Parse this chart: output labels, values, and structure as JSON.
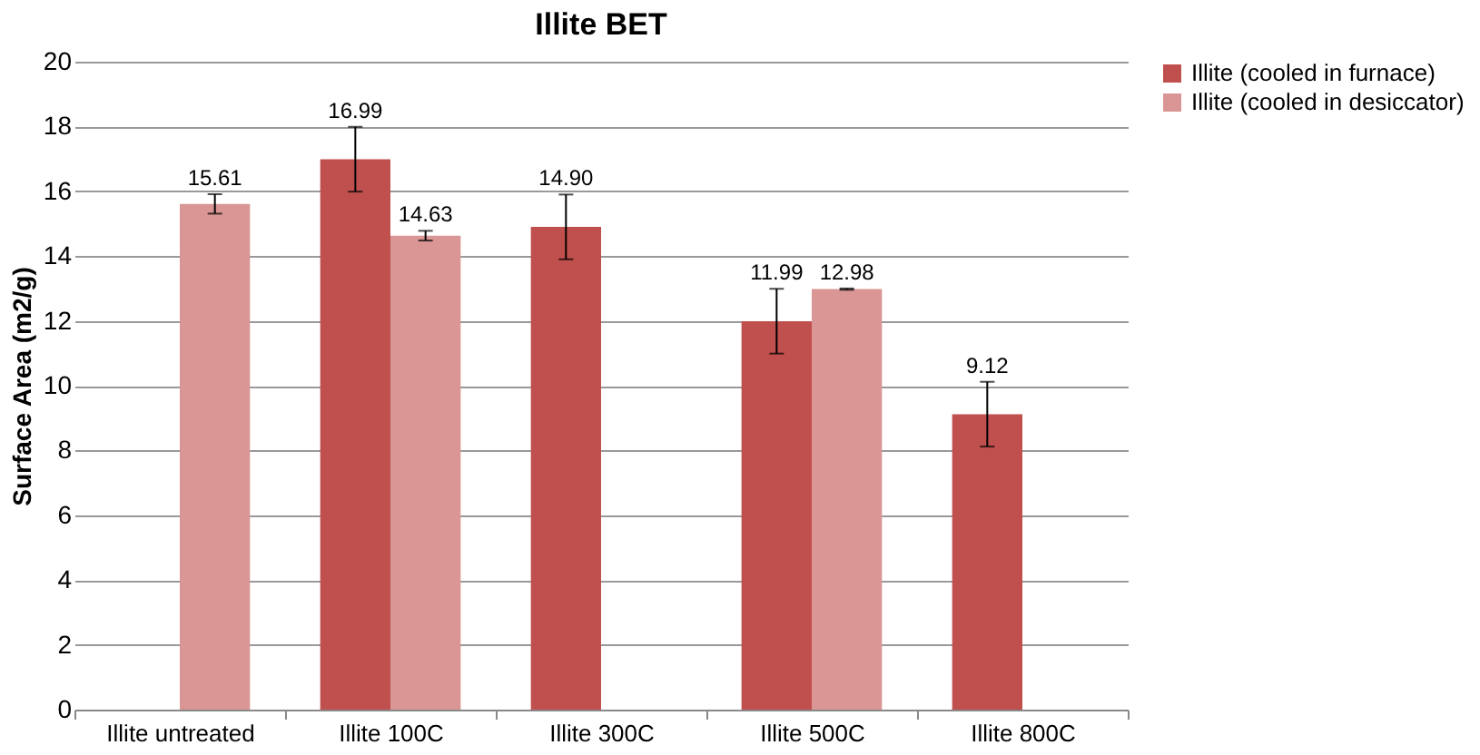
{
  "chart_data": {
    "type": "bar",
    "title": "Illite BET",
    "categories": [
      "Illite untreated",
      "Illite 100C",
      "Illite 300C",
      "Illite 500C",
      "Illite 800C"
    ],
    "series": [
      {
        "name": "Illite (cooled in furnace)",
        "color": "#c0504d",
        "values": [
          null,
          16.99,
          14.9,
          11.99,
          9.12
        ],
        "errors": [
          null,
          1.0,
          1.0,
          1.0,
          1.0
        ],
        "value_labels": [
          null,
          "16.99",
          "14.90",
          "11.99",
          "9.12"
        ]
      },
      {
        "name": "Illite  (cooled in desiccator)",
        "color": "#d99694",
        "values": [
          15.61,
          14.63,
          null,
          12.98,
          null
        ],
        "errors": [
          0.3,
          0.15,
          null,
          0.02,
          null
        ],
        "value_labels": [
          "15.61",
          "14.63",
          null,
          "12.98",
          null
        ]
      }
    ],
    "ylabel": "Surface Area (m2/g)",
    "ylim": [
      0,
      20
    ],
    "yticks": [
      0,
      2,
      4,
      6,
      8,
      10,
      12,
      14,
      16,
      18,
      20
    ],
    "grid": "y",
    "legend": "right"
  }
}
